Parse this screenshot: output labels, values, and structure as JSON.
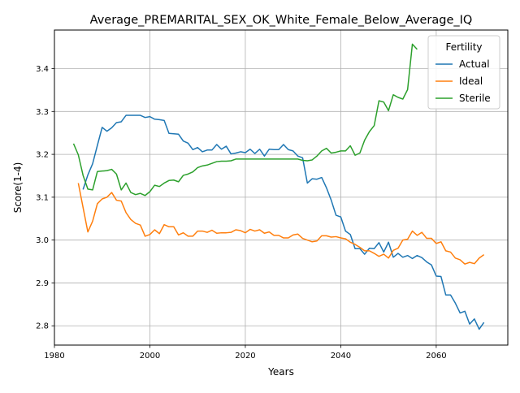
{
  "chart_data": {
    "type": "line",
    "title": "Average_PREMARITAL_SEX_OK_White_Female_Below_Average_IQ",
    "xlabel": "Years",
    "ylabel": "Score(1-4)",
    "xlim": [
      1980,
      2075
    ],
    "ylim": [
      2.755,
      3.49
    ],
    "xticks": [
      1980,
      2000,
      2020,
      2040,
      2060
    ],
    "yticks": [
      2.8,
      2.9,
      3.0,
      3.1,
      3.2,
      3.3,
      3.4
    ],
    "xtick_labels": [
      "1980",
      "2000",
      "2020",
      "2040",
      "2060"
    ],
    "ytick_labels": [
      "2.8",
      "2.9",
      "3.0",
      "3.1",
      "3.2",
      "3.3",
      "3.4"
    ],
    "grid": true,
    "legend": {
      "title": "Fertility",
      "position": "top-right"
    },
    "series": [
      {
        "name": "Actual",
        "color": "#1f77b4",
        "x": [
          1986,
          1987,
          1988,
          1989,
          1990,
          1991,
          1992,
          1993,
          1994,
          1995,
          1996,
          1997,
          1998,
          1999,
          2000,
          2001,
          2002,
          2003,
          2004,
          2005,
          2006,
          2007,
          2008,
          2009,
          2010,
          2011,
          2012,
          2013,
          2014,
          2015,
          2016,
          2017,
          2018,
          2019,
          2020,
          2021,
          2022,
          2023,
          2024,
          2025,
          2026,
          2027,
          2028,
          2029,
          2030,
          2031,
          2032,
          2033,
          2034,
          2035,
          2036,
          2037,
          2038,
          2039,
          2040,
          2041,
          2042,
          2043,
          2044,
          2045,
          2046,
          2047,
          2048,
          2049,
          2050,
          2051,
          2052,
          2053,
          2054,
          2055,
          2056,
          2057,
          2058,
          2059,
          2060,
          2061,
          2062,
          2063,
          2064,
          2065,
          2066,
          2067,
          2068,
          2069,
          2070
        ],
        "values": [
          3.118,
          3.152,
          3.178,
          3.221,
          3.263,
          3.254,
          3.262,
          3.274,
          3.276,
          3.291,
          3.291,
          3.291,
          3.291,
          3.286,
          3.288,
          3.282,
          3.281,
          3.279,
          3.249,
          3.248,
          3.247,
          3.231,
          3.226,
          3.211,
          3.216,
          3.206,
          3.21,
          3.21,
          3.223,
          3.212,
          3.219,
          3.201,
          3.203,
          3.206,
          3.204,
          3.212,
          3.202,
          3.212,
          3.196,
          3.212,
          3.211,
          3.211,
          3.223,
          3.211,
          3.208,
          3.196,
          3.192,
          3.133,
          3.143,
          3.142,
          3.146,
          3.122,
          3.093,
          3.058,
          3.054,
          3.021,
          3.013,
          2.98,
          2.98,
          2.967,
          2.981,
          2.98,
          2.994,
          2.972,
          2.995,
          2.96,
          2.969,
          2.96,
          2.964,
          2.957,
          2.964,
          2.959,
          2.949,
          2.942,
          2.916,
          2.915,
          2.872,
          2.872,
          2.853,
          2.83,
          2.834,
          2.804,
          2.816,
          2.792,
          2.808
        ]
      },
      {
        "name": "Ideal",
        "color": "#ff7f0e",
        "x": [
          1985,
          1986,
          1987,
          1988,
          1989,
          1990,
          1991,
          1992,
          1993,
          1994,
          1995,
          1996,
          1997,
          1998,
          1999,
          2000,
          2001,
          2002,
          2003,
          2004,
          2005,
          2006,
          2007,
          2008,
          2009,
          2010,
          2011,
          2012,
          2013,
          2014,
          2015,
          2016,
          2017,
          2018,
          2019,
          2020,
          2021,
          2022,
          2023,
          2024,
          2025,
          2026,
          2027,
          2028,
          2029,
          2030,
          2031,
          2032,
          2033,
          2034,
          2035,
          2036,
          2037,
          2038,
          2039,
          2040,
          2041,
          2042,
          2043,
          2044,
          2045,
          2046,
          2047,
          2048,
          2049,
          2050,
          2051,
          2052,
          2053,
          2054,
          2055,
          2056,
          2057,
          2058,
          2059,
          2060,
          2061,
          2062,
          2063,
          2064,
          2065,
          2066,
          2067,
          2068,
          2069,
          2070
        ],
        "values": [
          3.133,
          3.076,
          3.019,
          3.044,
          3.085,
          3.096,
          3.1,
          3.111,
          3.093,
          3.091,
          3.064,
          3.048,
          3.039,
          3.035,
          3.009,
          3.013,
          3.024,
          3.015,
          3.036,
          3.031,
          3.031,
          3.012,
          3.017,
          3.009,
          3.009,
          3.021,
          3.021,
          3.018,
          3.023,
          3.016,
          3.017,
          3.017,
          3.018,
          3.024,
          3.022,
          3.017,
          3.025,
          3.021,
          3.024,
          3.016,
          3.019,
          3.011,
          3.011,
          3.005,
          3.005,
          3.012,
          3.014,
          3.004,
          3.0,
          2.996,
          2.998,
          3.01,
          3.01,
          3.007,
          3.008,
          3.005,
          3.003,
          2.995,
          2.99,
          2.983,
          2.975,
          2.975,
          2.969,
          2.962,
          2.967,
          2.958,
          2.976,
          2.981,
          3.0,
          3.002,
          3.021,
          3.011,
          3.018,
          3.004,
          3.004,
          2.992,
          2.996,
          2.975,
          2.972,
          2.958,
          2.954,
          2.944,
          2.948,
          2.945,
          2.958,
          2.966
        ]
      },
      {
        "name": "Sterile",
        "color": "#2ca02c",
        "x": [
          1984,
          1985,
          1986,
          1987,
          1988,
          1989,
          1990,
          1991,
          1992,
          1993,
          1994,
          1995,
          1996,
          1997,
          1998,
          1999,
          2000,
          2001,
          2002,
          2003,
          2004,
          2005,
          2006,
          2007,
          2008,
          2009,
          2010,
          2011,
          2012,
          2013,
          2014,
          2015,
          2016,
          2017,
          2018,
          2019,
          2020,
          2021,
          2022,
          2023,
          2024,
          2025,
          2026,
          2027,
          2028,
          2029,
          2030,
          2031,
          2032,
          2033,
          2034,
          2035,
          2036,
          2037,
          2038,
          2039,
          2040,
          2041,
          2042,
          2043,
          2044,
          2045,
          2046,
          2047,
          2048,
          2049,
          2050,
          2051,
          2052,
          2053,
          2054,
          2055,
          2056
        ],
        "values": [
          3.225,
          3.199,
          3.151,
          3.119,
          3.117,
          3.16,
          3.161,
          3.162,
          3.165,
          3.154,
          3.117,
          3.133,
          3.111,
          3.106,
          3.109,
          3.104,
          3.113,
          3.128,
          3.125,
          3.133,
          3.139,
          3.14,
          3.136,
          3.151,
          3.154,
          3.159,
          3.169,
          3.173,
          3.175,
          3.179,
          3.183,
          3.184,
          3.184,
          3.185,
          3.189,
          3.189,
          3.189,
          3.189,
          3.189,
          3.189,
          3.189,
          3.189,
          3.189,
          3.189,
          3.189,
          3.189,
          3.189,
          3.189,
          3.186,
          3.185,
          3.187,
          3.196,
          3.208,
          3.214,
          3.203,
          3.205,
          3.208,
          3.208,
          3.22,
          3.198,
          3.203,
          3.233,
          3.253,
          3.267,
          3.325,
          3.322,
          3.302,
          3.339,
          3.333,
          3.329,
          3.351,
          3.457,
          3.445
        ]
      }
    ]
  }
}
